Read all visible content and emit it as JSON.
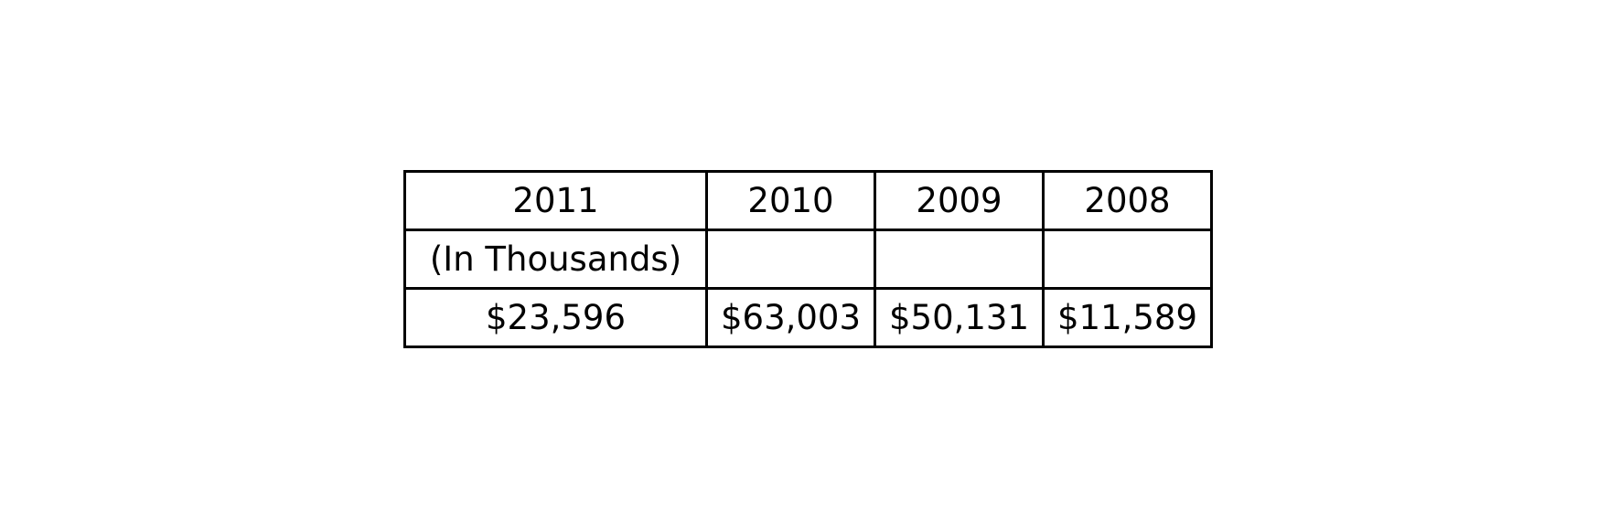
{
  "table": {
    "header": [
      "2011",
      "2010",
      "2009",
      "2008"
    ],
    "unit_row": [
      "(In Thousands)",
      "",
      "",
      ""
    ],
    "value_row": [
      "$23,596",
      "$63,003",
      "$50,131",
      "$11,589"
    ]
  }
}
